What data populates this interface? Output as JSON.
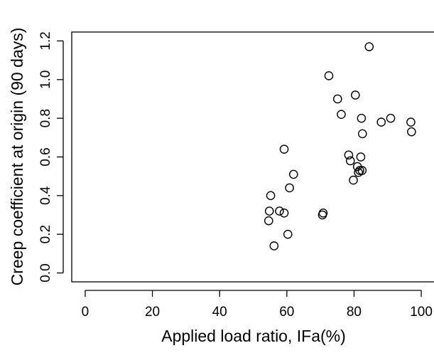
{
  "chart_data": {
    "type": "scatter",
    "title": "",
    "xlabel": "Applied load ratio, IFa(%)",
    "ylabel": "Creep coefficient at origin (90 days)",
    "xlim": [
      -4,
      104
    ],
    "ylim": [
      -0.046,
      1.246
    ],
    "x_ticks": [
      0,
      20,
      40,
      60,
      80,
      100
    ],
    "x_tick_labels": [
      "0",
      "20",
      "40",
      "60",
      "80",
      "100"
    ],
    "y_ticks": [
      0.0,
      0.2,
      0.4,
      0.6,
      0.8,
      1.0,
      1.2
    ],
    "y_tick_labels": [
      "0.0",
      "0.2",
      "0.4",
      "0.6",
      "0.8",
      "1.0",
      "1.2"
    ],
    "grid": false,
    "legend": "none",
    "marker": "open-circle",
    "color": "#000000",
    "points": [
      {
        "x": 54.6,
        "y": 0.27
      },
      {
        "x": 54.8,
        "y": 0.32
      },
      {
        "x": 55.2,
        "y": 0.4
      },
      {
        "x": 56.2,
        "y": 0.14
      },
      {
        "x": 57.8,
        "y": 0.32
      },
      {
        "x": 59.2,
        "y": 0.31
      },
      {
        "x": 59.2,
        "y": 0.64
      },
      {
        "x": 60.3,
        "y": 0.2
      },
      {
        "x": 60.8,
        "y": 0.44
      },
      {
        "x": 62.0,
        "y": 0.51
      },
      {
        "x": 70.6,
        "y": 0.3
      },
      {
        "x": 70.8,
        "y": 0.31
      },
      {
        "x": 72.5,
        "y": 1.02
      },
      {
        "x": 75.1,
        "y": 0.9
      },
      {
        "x": 76.2,
        "y": 0.82
      },
      {
        "x": 78.4,
        "y": 0.61
      },
      {
        "x": 78.9,
        "y": 0.58
      },
      {
        "x": 79.8,
        "y": 0.48
      },
      {
        "x": 80.4,
        "y": 0.92
      },
      {
        "x": 81.0,
        "y": 0.55
      },
      {
        "x": 81.3,
        "y": 0.52
      },
      {
        "x": 81.7,
        "y": 0.53
      },
      {
        "x": 82.0,
        "y": 0.6
      },
      {
        "x": 82.2,
        "y": 0.8
      },
      {
        "x": 82.4,
        "y": 0.53
      },
      {
        "x": 82.5,
        "y": 0.72
      },
      {
        "x": 84.5,
        "y": 1.17
      },
      {
        "x": 88.1,
        "y": 0.78
      },
      {
        "x": 90.9,
        "y": 0.8
      },
      {
        "x": 96.9,
        "y": 0.78
      },
      {
        "x": 97.1,
        "y": 0.73
      }
    ]
  }
}
